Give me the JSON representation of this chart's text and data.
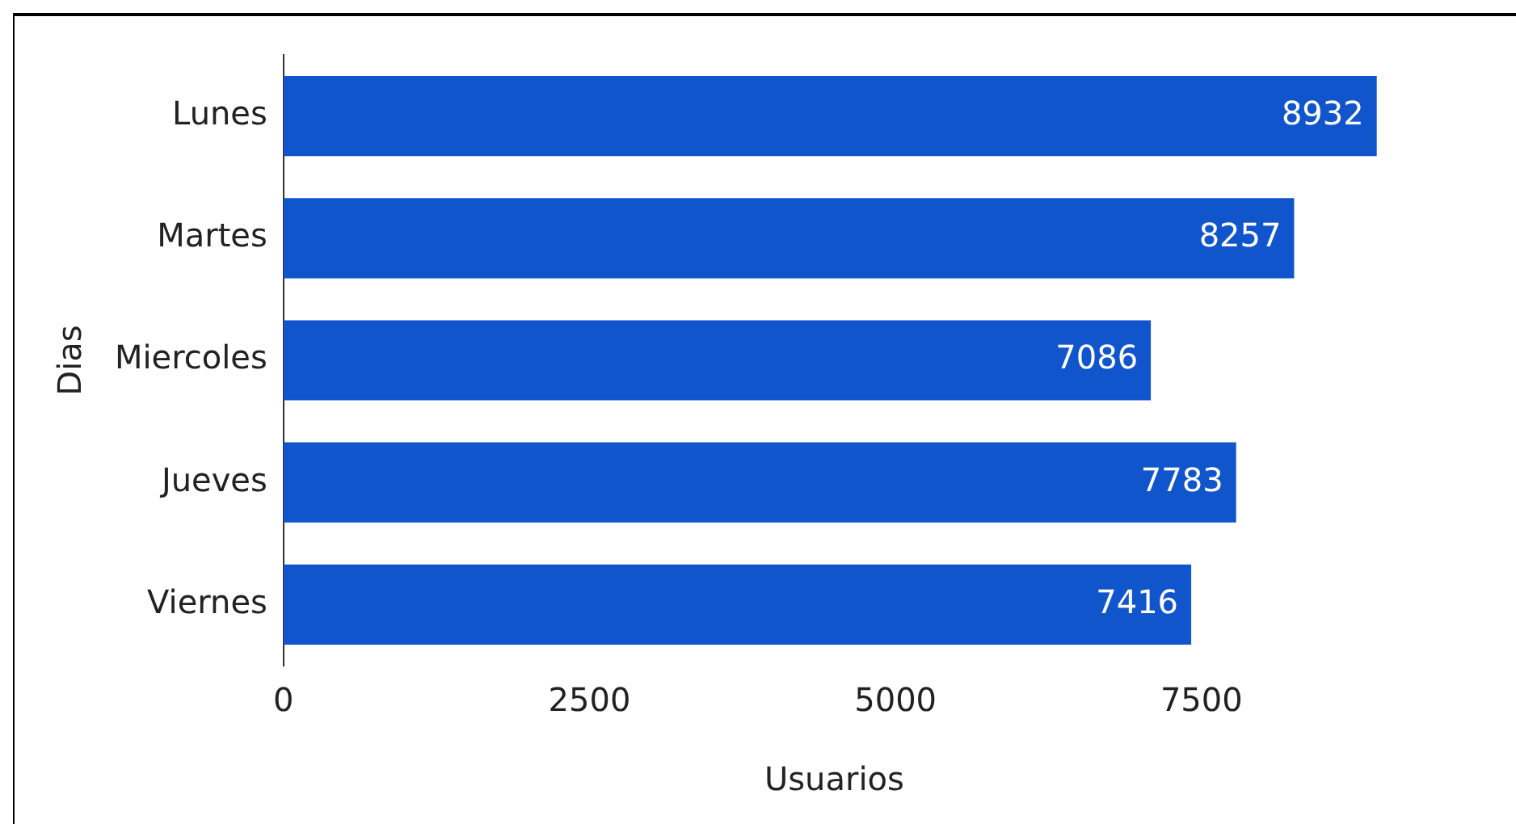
{
  "chart_data": {
    "type": "bar",
    "orientation": "horizontal",
    "categories": [
      "Lunes",
      "Martes",
      "Miercoles",
      "Jueves",
      "Viernes"
    ],
    "values": [
      8932,
      8257,
      7086,
      7783,
      7416
    ],
    "color": "#1155cc",
    "xlabel": "Usuarios",
    "ylabel": "Dias",
    "xlim": [
      0,
      9000
    ],
    "xticks": [
      0,
      2500,
      5000,
      7500
    ],
    "data_labels": true,
    "grid": false,
    "legend": false
  }
}
